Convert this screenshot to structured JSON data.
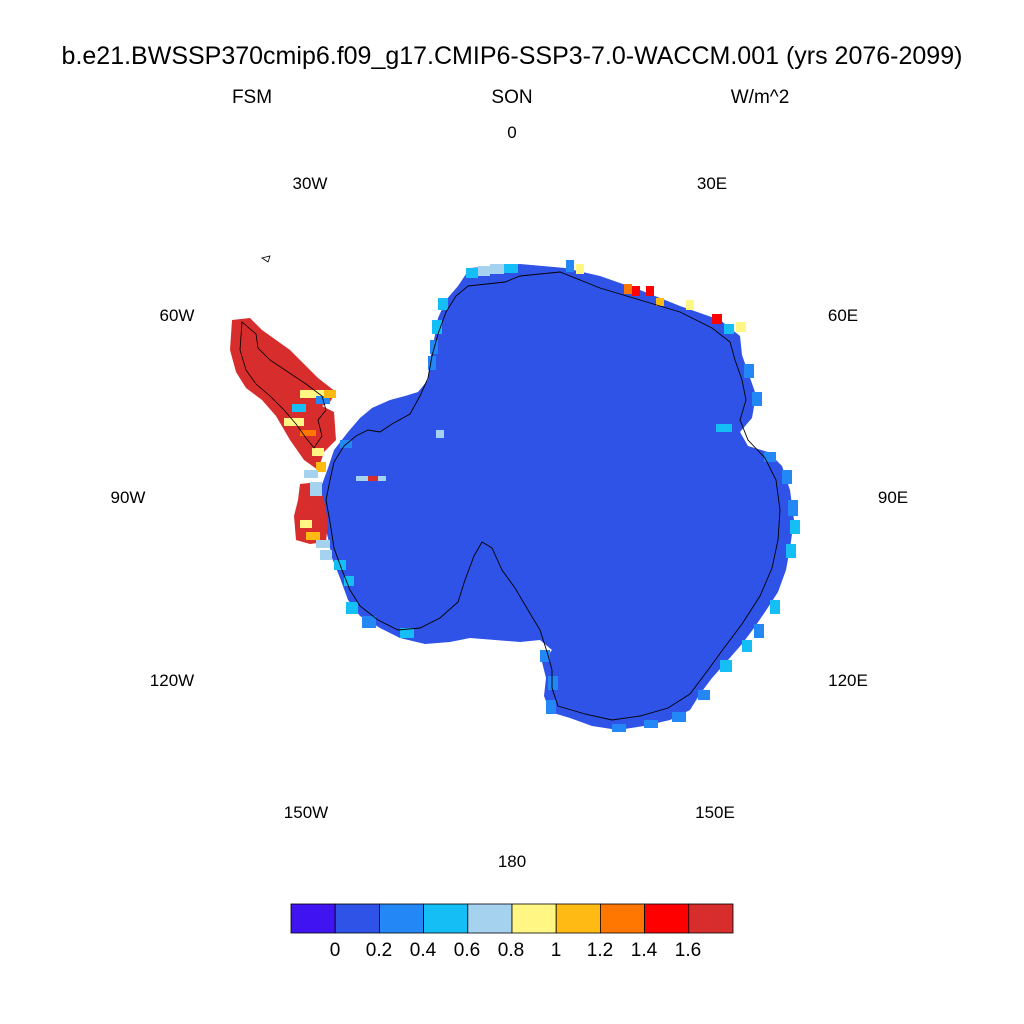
{
  "title": "b.e21.BWSSP370cmip6.f09_g17.CMIP6-SSP3-7.0-WACCM.001 (yrs 2076-2099)",
  "left_string": "FSM",
  "center_string": "SON",
  "right_string": "W/m^2",
  "longitude_labels": {
    "lon_0": "0",
    "lon_30e": "30E",
    "lon_60e": "60E",
    "lon_90e": "90E",
    "lon_120e": "120E",
    "lon_150e": "150E",
    "lon_180": "180",
    "lon_150w": "150W",
    "lon_120w": "120W",
    "lon_90w": "90W",
    "lon_60w": "60W",
    "lon_30w": "30W"
  },
  "projection": "south polar stereographic",
  "colorbar": {
    "colors": [
      "#3f14f0",
      "#2f53e6",
      "#2388f5",
      "#15bff5",
      "#a5d2ef",
      "#fff683",
      "#ffba13",
      "#ff7600",
      "#ff0000",
      "#d72d2c"
    ],
    "tick_labels": [
      "0",
      "0.2",
      "0.4",
      "0.6",
      "0.8",
      "1",
      "1.2",
      "1.4",
      "1.6"
    ],
    "tick_values": [
      0,
      0.2,
      0.4,
      0.6,
      0.8,
      1,
      1.2,
      1.4,
      1.6
    ]
  },
  "field_colors": {
    "ice_sheet": "#2f53e6",
    "coast_low": "#2388f5",
    "coast_mid": "#15bff5",
    "peninsula": "#d72d2c"
  }
}
